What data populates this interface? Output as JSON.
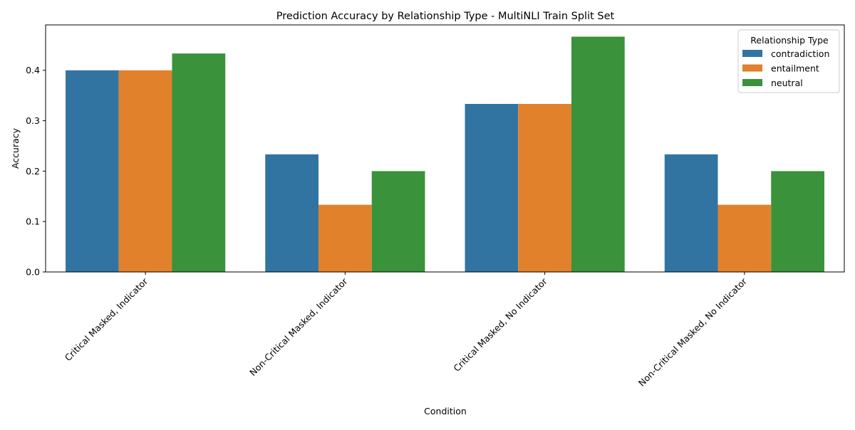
{
  "chart_data": {
    "type": "bar",
    "title": "Prediction Accuracy by Relationship Type - MultiNLI Train Split Set",
    "xlabel": "Condition",
    "ylabel": "Accuracy",
    "categories": [
      "Critical Masked, Indicator",
      "Non-Critical Masked, Indicator",
      "Critical Masked, No Indicator",
      "Non-Critical Masked, No Indicator"
    ],
    "series": [
      {
        "name": "contradiction",
        "color": "#3274a1",
        "values": [
          0.4,
          0.2333,
          0.3333,
          0.2333
        ]
      },
      {
        "name": "entailment",
        "color": "#e1812c",
        "values": [
          0.4,
          0.1333,
          0.3333,
          0.1333
        ]
      },
      {
        "name": "neutral",
        "color": "#3a923a",
        "values": [
          0.4333,
          0.2,
          0.4667,
          0.2
        ]
      }
    ],
    "ylim": [
      0,
      0.49
    ],
    "yticks": [
      "0.0",
      "0.1",
      "0.2",
      "0.3",
      "0.4"
    ],
    "legend": {
      "title": "Relationship Type",
      "placement": "top-right"
    },
    "grid": false
  }
}
